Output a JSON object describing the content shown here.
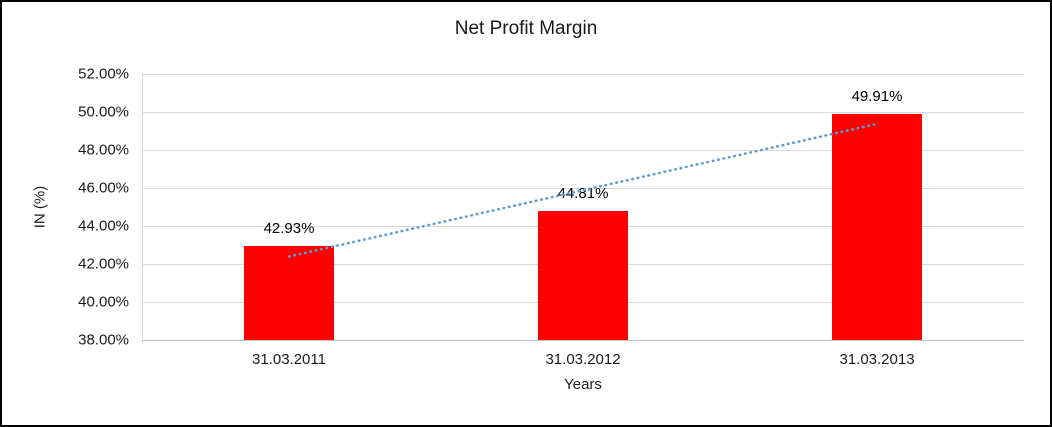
{
  "chart_data": {
    "type": "bar",
    "title": "Net Profit Margin",
    "xlabel": "Years",
    "ylabel": "IN (%)",
    "categories": [
      "31.03.2011",
      "31.03.2012",
      "31.03.2013"
    ],
    "values": [
      42.93,
      44.81,
      49.91
    ],
    "data_labels": [
      "42.93%",
      "44.81%",
      "49.91%"
    ],
    "ylim": [
      38,
      52
    ],
    "ytick_step": 2,
    "yticks": [
      "38.00%",
      "40.00%",
      "42.00%",
      "44.00%",
      "46.00%",
      "48.00%",
      "50.00%",
      "52.00%"
    ],
    "bar_color": "#ff0000",
    "trendline_color": "#5b9bd5",
    "gridline_color": "#d9d9d9",
    "grid": true,
    "legend": "none",
    "trendline": "linear"
  }
}
